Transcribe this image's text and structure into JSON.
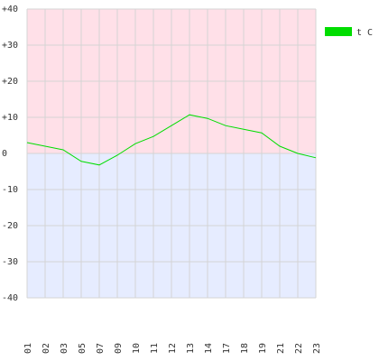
{
  "chart_data": {
    "type": "line",
    "categories": [
      "01",
      "02",
      "03",
      "05",
      "07",
      "09",
      "10",
      "11",
      "12",
      "13",
      "14",
      "17",
      "18",
      "19",
      "21",
      "22",
      "23"
    ],
    "series": [
      {
        "name": "t C",
        "color": "#00dd00",
        "values": [
          3,
          2,
          1,
          -2.2,
          -3.2,
          -0.5,
          2.7,
          4.7,
          7.7,
          10.7,
          9.7,
          7.7,
          6.7,
          5.7,
          2,
          0,
          -1.2
        ]
      }
    ],
    "ylim": [
      -40,
      40
    ],
    "yticks": [
      {
        "value": 40,
        "label": "+40"
      },
      {
        "value": 30,
        "label": "+30"
      },
      {
        "value": 20,
        "label": "+20"
      },
      {
        "value": 10,
        "label": "+10"
      },
      0,
      -10,
      -20,
      -30,
      -40
    ],
    "grid": true,
    "legend": "top-right"
  }
}
